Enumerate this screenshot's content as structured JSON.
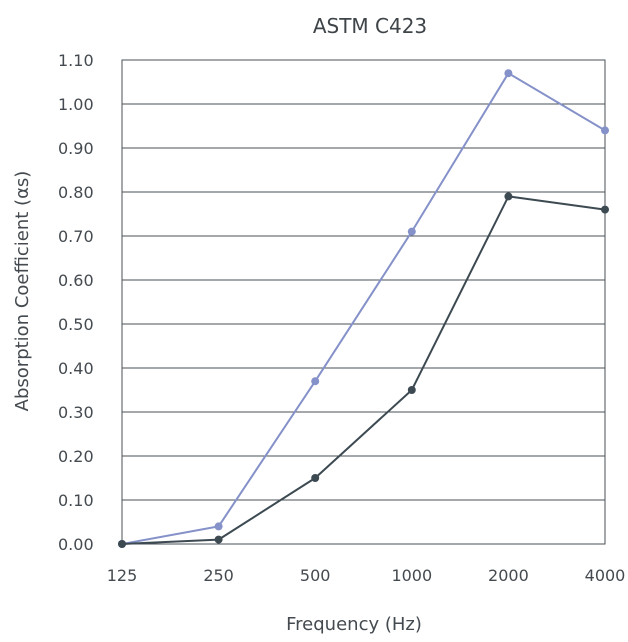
{
  "chart_data": {
    "type": "line",
    "title": "ASTM C423",
    "xlabel": "Frequency (Hz)",
    "ylabel": "Absorption Coefficient (αs)",
    "categories": [
      "125",
      "250",
      "500",
      "1000",
      "2000",
      "4000"
    ],
    "y_ticks": [
      "0.00",
      "0.10",
      "0.20",
      "0.30",
      "0.40",
      "0.50",
      "0.60",
      "0.70",
      "0.80",
      "0.90",
      "1.00",
      "1.10"
    ],
    "ylim": [
      0,
      1.1
    ],
    "grid": true,
    "series": [
      {
        "values": [
          0.0,
          0.04,
          0.37,
          0.71,
          1.07,
          0.94
        ],
        "color": "#8591c9"
      },
      {
        "values": [
          0.0,
          0.01,
          0.15,
          0.35,
          0.79,
          0.76
        ],
        "color": "#3d4a52"
      }
    ]
  }
}
